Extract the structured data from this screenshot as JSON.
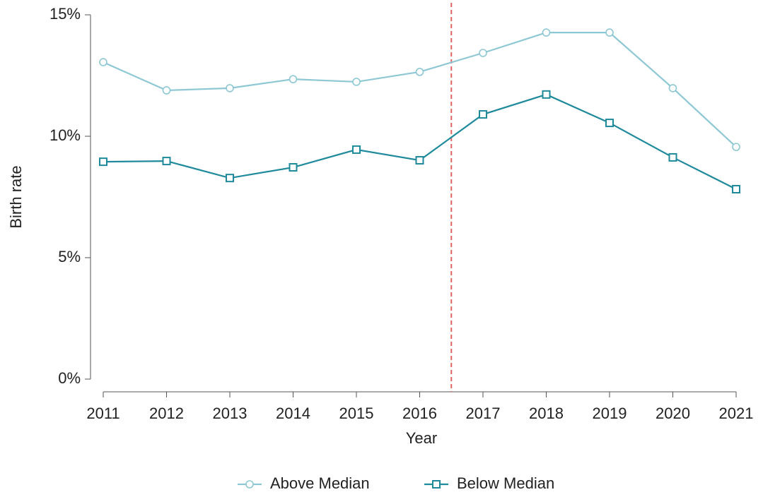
{
  "chart_data": {
    "type": "line",
    "x_label": "Year",
    "y_label": "Birth rate",
    "x": [
      2011,
      2012,
      2013,
      2014,
      2015,
      2016,
      2017,
      2018,
      2019,
      2020,
      2021
    ],
    "series": [
      {
        "name": "Above Median",
        "color": "#8ec8d4",
        "marker": "circle",
        "values": [
          13.05,
          11.89,
          11.98,
          12.35,
          12.24,
          12.65,
          13.43,
          14.27,
          14.27,
          11.98,
          9.56
        ]
      },
      {
        "name": "Below Median",
        "color": "#1f8a9c",
        "marker": "square",
        "values": [
          8.95,
          8.98,
          8.28,
          8.72,
          9.45,
          9.01,
          10.9,
          11.72,
          10.55,
          9.13,
          7.82
        ]
      }
    ],
    "xlim": [
      2011,
      2021
    ],
    "xticks": [
      2011,
      2012,
      2013,
      2014,
      2015,
      2016,
      2017,
      2018,
      2019,
      2020,
      2021
    ],
    "ylim": [
      0,
      15
    ],
    "yticks": [
      {
        "value": 0,
        "label": "0%"
      },
      {
        "value": 5,
        "label": "5%"
      },
      {
        "value": 10,
        "label": "10%"
      },
      {
        "value": 15,
        "label": "15%"
      }
    ],
    "vline": 2016.5,
    "vline_color": "#e06666",
    "legend": "bottom"
  }
}
